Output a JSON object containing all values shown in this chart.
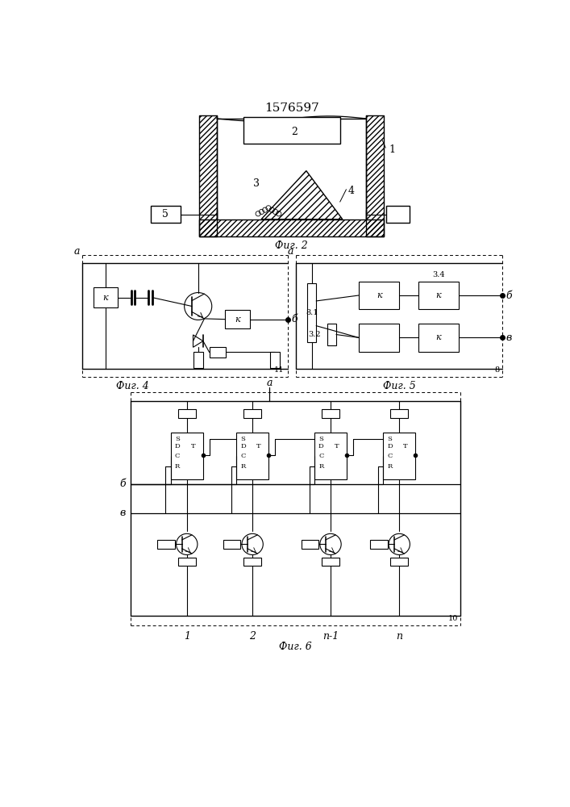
{
  "title": "1576597",
  "fig2_caption": "Фиг. 2",
  "fig4_caption": "Фиг. 4",
  "fig5_caption": "Фиг. 5",
  "fig6_caption": "Фиг. 6",
  "bg_color": "#ffffff",
  "line_color": "#000000"
}
